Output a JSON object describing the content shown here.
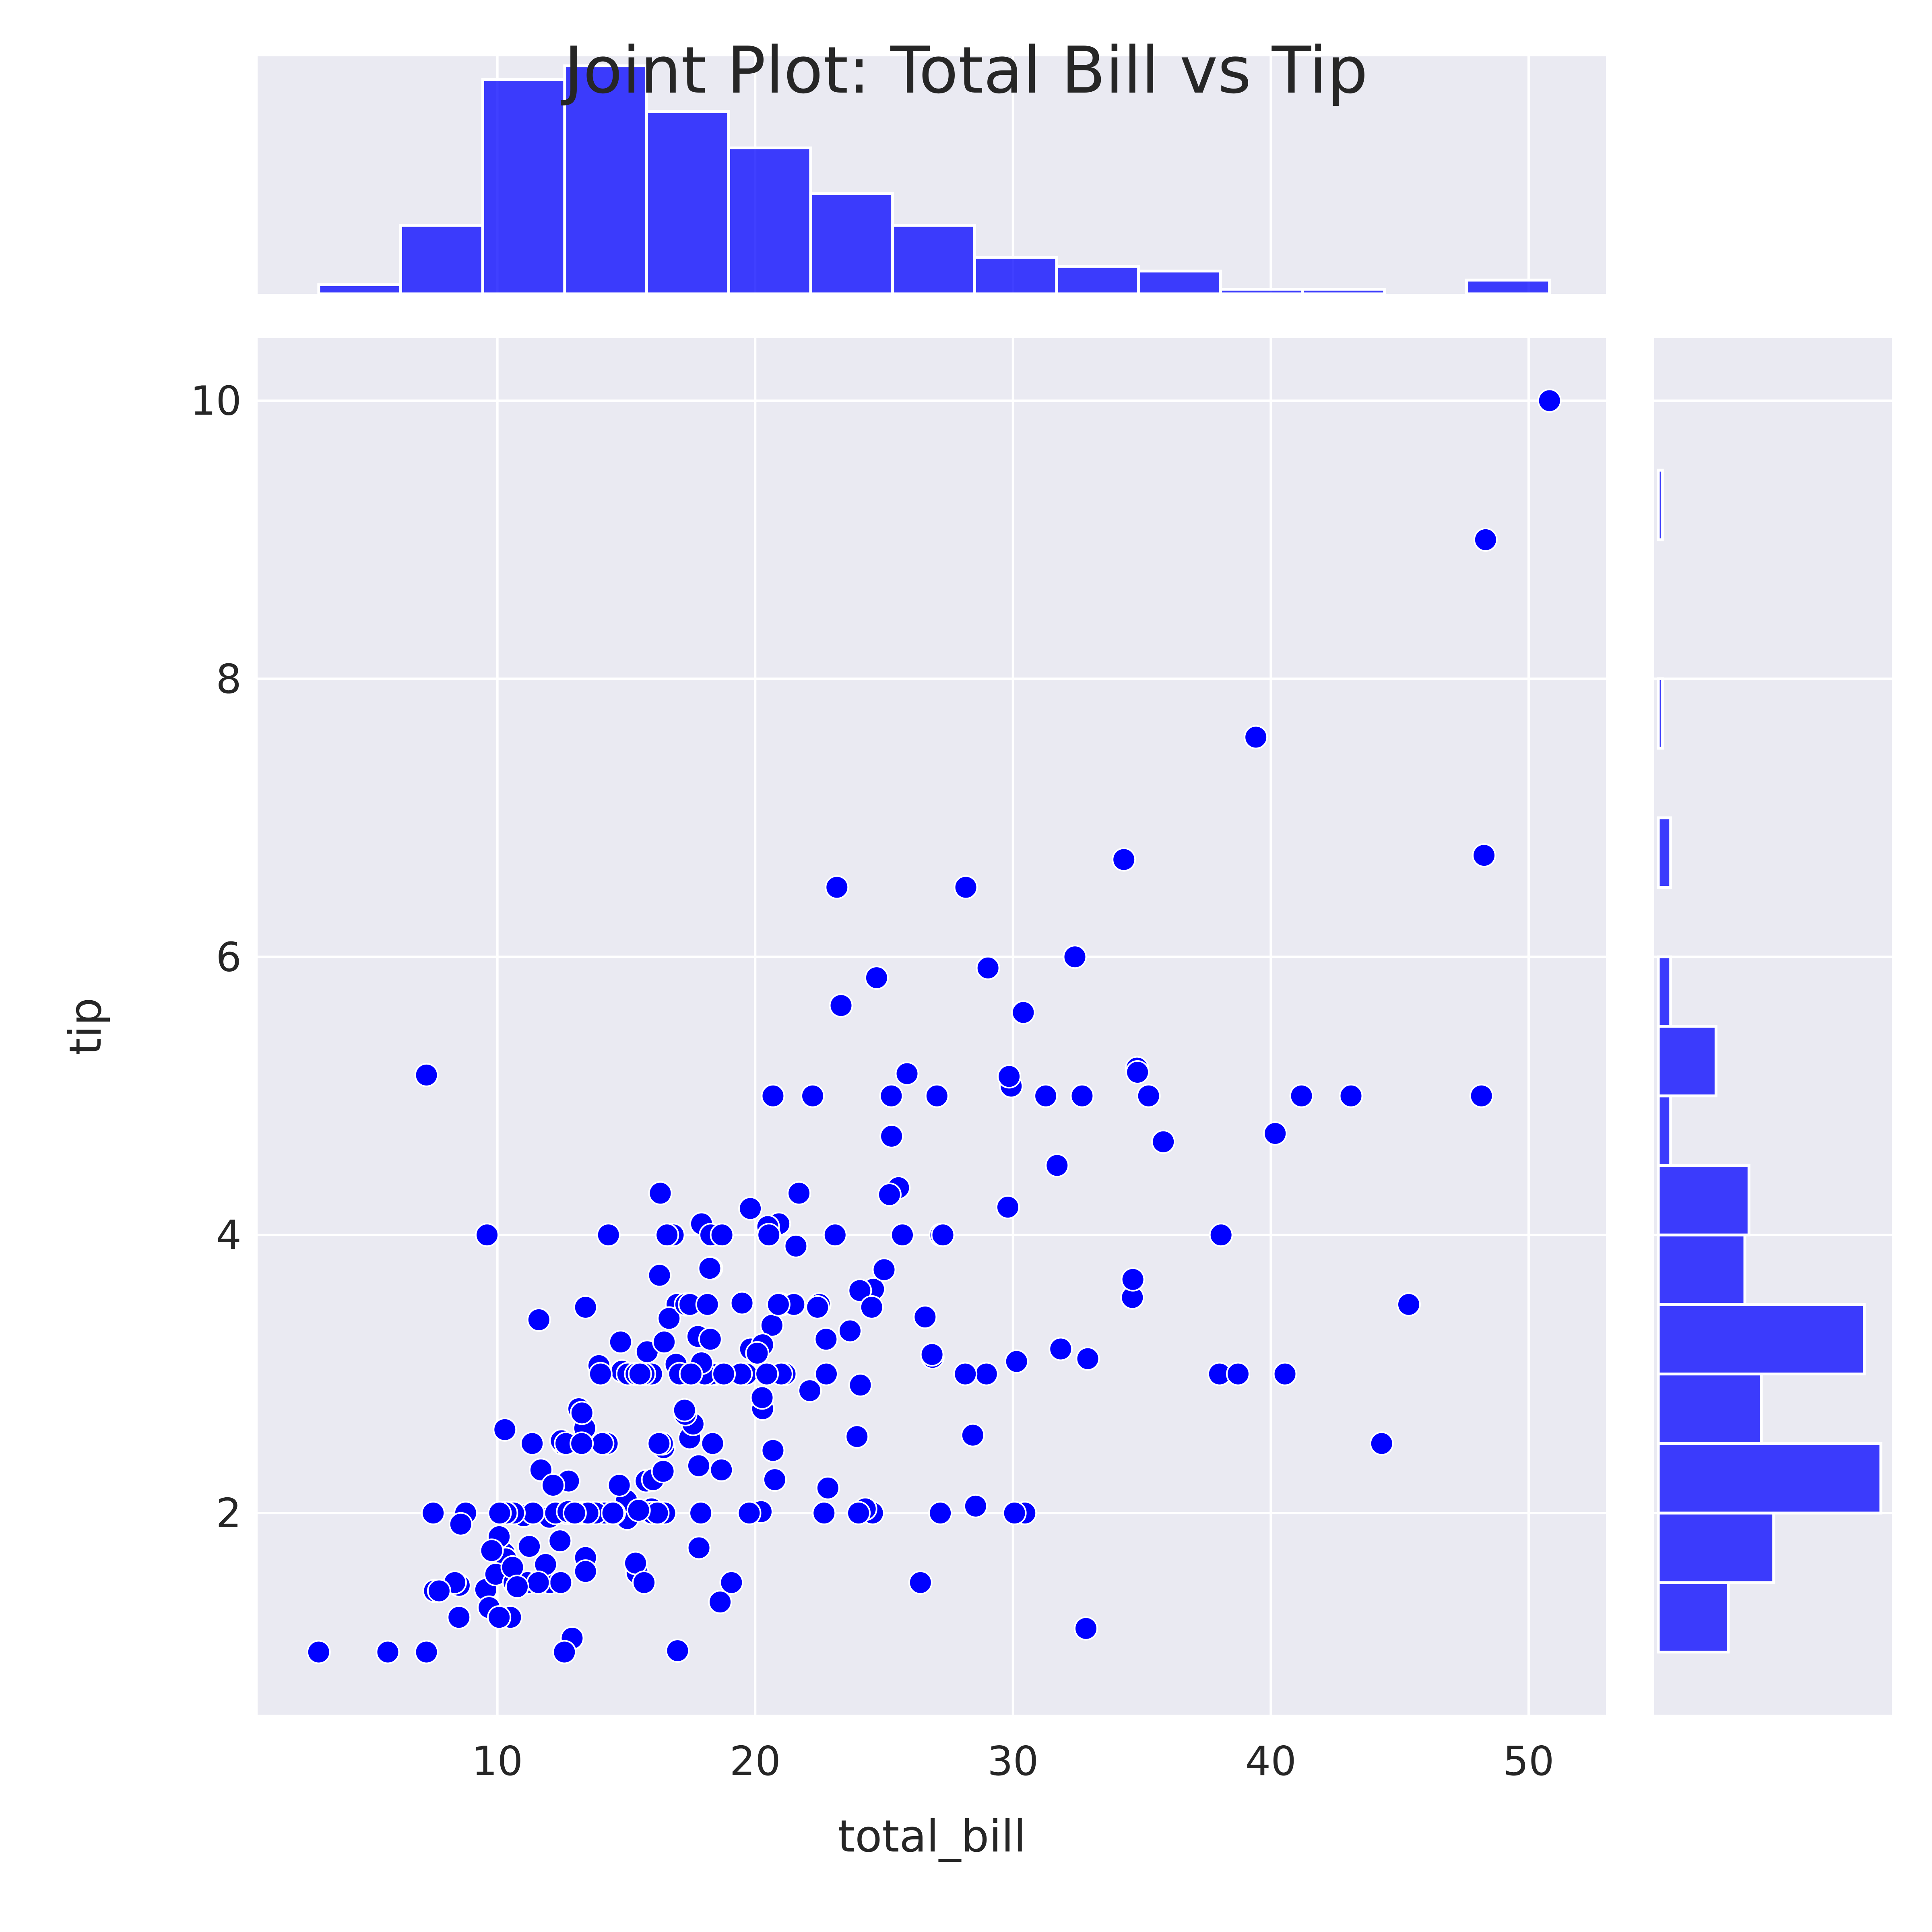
{
  "chart_data": {
    "type": "scatter",
    "title": "Joint Plot: Total Bill vs Tip",
    "xlabel": "total_bill",
    "ylabel": "tip",
    "xlim": [
      0.7,
      53.0
    ],
    "ylim": [
      0.55,
      10.45
    ],
    "xticks": [
      "10",
      "20",
      "30",
      "40",
      "50"
    ],
    "yticks": [
      "2",
      "4",
      "6",
      "8",
      "10"
    ],
    "grid": true,
    "color": "#0000ff",
    "points": [
      [
        16.99,
        1.01
      ],
      [
        10.34,
        1.66
      ],
      [
        21.01,
        3.5
      ],
      [
        23.68,
        3.31
      ],
      [
        24.59,
        3.61
      ],
      [
        25.29,
        4.71
      ],
      [
        8.77,
        2.0
      ],
      [
        26.88,
        3.12
      ],
      [
        15.04,
        1.96
      ],
      [
        14.78,
        3.23
      ],
      [
        10.27,
        1.71
      ],
      [
        35.26,
        5.0
      ],
      [
        15.42,
        1.57
      ],
      [
        18.43,
        3.0
      ],
      [
        14.83,
        3.02
      ],
      [
        21.58,
        3.92
      ],
      [
        10.33,
        1.67
      ],
      [
        16.29,
        3.71
      ],
      [
        16.97,
        3.5
      ],
      [
        20.65,
        3.35
      ],
      [
        17.92,
        4.08
      ],
      [
        20.29,
        2.75
      ],
      [
        15.77,
        2.23
      ],
      [
        39.42,
        7.58
      ],
      [
        19.82,
        3.18
      ],
      [
        17.81,
        2.34
      ],
      [
        13.37,
        2.0
      ],
      [
        12.69,
        2.0
      ],
      [
        21.7,
        4.3
      ],
      [
        19.65,
        3.0
      ],
      [
        9.55,
        1.45
      ],
      [
        18.35,
        2.5
      ],
      [
        15.06,
        3.0
      ],
      [
        20.69,
        2.45
      ],
      [
        17.78,
        3.27
      ],
      [
        24.06,
        3.6
      ],
      [
        16.31,
        2.0
      ],
      [
        16.93,
        3.07
      ],
      [
        18.69,
        2.31
      ],
      [
        31.27,
        5.0
      ],
      [
        16.04,
        2.24
      ],
      [
        17.46,
        2.54
      ],
      [
        13.94,
        3.06
      ],
      [
        9.68,
        1.32
      ],
      [
        30.4,
        5.6
      ],
      [
        18.29,
        3.0
      ],
      [
        22.23,
        5.0
      ],
      [
        32.4,
        6.0
      ],
      [
        28.55,
        2.05
      ],
      [
        18.04,
        3.0
      ],
      [
        12.54,
        2.5
      ],
      [
        10.29,
        2.6
      ],
      [
        34.81,
        5.2
      ],
      [
        9.94,
        1.56
      ],
      [
        25.56,
        4.34
      ],
      [
        19.49,
        3.51
      ],
      [
        38.01,
        3.0
      ],
      [
        26.41,
        1.5
      ],
      [
        11.24,
        1.76
      ],
      [
        48.27,
        6.73
      ],
      [
        20.29,
        3.21
      ],
      [
        13.81,
        2.0
      ],
      [
        11.02,
        1.98
      ],
      [
        18.29,
        3.76
      ],
      [
        17.59,
        2.64
      ],
      [
        20.08,
        3.15
      ],
      [
        16.45,
        2.47
      ],
      [
        3.07,
        1.0
      ],
      [
        20.23,
        2.01
      ],
      [
        15.01,
        2.09
      ],
      [
        12.02,
        1.97
      ],
      [
        17.07,
        3.0
      ],
      [
        26.86,
        3.14
      ],
      [
        25.28,
        5.0
      ],
      [
        14.73,
        2.2
      ],
      [
        10.51,
        1.25
      ],
      [
        17.92,
        3.08
      ],
      [
        27.2,
        4.0
      ],
      [
        22.76,
        3.0
      ],
      [
        17.29,
        2.71
      ],
      [
        19.44,
        3.0
      ],
      [
        16.66,
        3.4
      ],
      [
        10.07,
        1.83
      ],
      [
        32.68,
        5.0
      ],
      [
        15.98,
        2.03
      ],
      [
        34.83,
        5.17
      ],
      [
        13.03,
        2.0
      ],
      [
        18.28,
        4.0
      ],
      [
        24.71,
        5.85
      ],
      [
        21.16,
        3.0
      ],
      [
        28.97,
        3.0
      ],
      [
        22.49,
        3.5
      ],
      [
        5.75,
        1.0
      ],
      [
        16.32,
        4.3
      ],
      [
        22.75,
        3.25
      ],
      [
        40.17,
        4.73
      ],
      [
        27.28,
        4.0
      ],
      [
        12.03,
        1.5
      ],
      [
        21.01,
        3.0
      ],
      [
        12.46,
        1.5
      ],
      [
        11.35,
        2.5
      ],
      [
        15.38,
        3.0
      ],
      [
        44.3,
        2.5
      ],
      [
        22.42,
        3.48
      ],
      [
        20.92,
        4.08
      ],
      [
        15.36,
        1.64
      ],
      [
        20.49,
        4.06
      ],
      [
        25.21,
        4.29
      ],
      [
        18.24,
        3.76
      ],
      [
        14.31,
        4.0
      ],
      [
        14.0,
        3.0
      ],
      [
        7.25,
        1.0
      ],
      [
        38.07,
        4.0
      ],
      [
        23.95,
        2.55
      ],
      [
        25.71,
        4.0
      ],
      [
        17.31,
        3.5
      ],
      [
        29.93,
        5.07
      ],
      [
        10.65,
        1.5
      ],
      [
        12.43,
        1.8
      ],
      [
        24.08,
        2.92
      ],
      [
        11.69,
        2.31
      ],
      [
        13.42,
        1.68
      ],
      [
        14.26,
        2.5
      ],
      [
        15.95,
        2.0
      ],
      [
        12.48,
        2.52
      ],
      [
        29.8,
        4.2
      ],
      [
        8.52,
        1.48
      ],
      [
        14.52,
        2.0
      ],
      [
        11.38,
        2.0
      ],
      [
        22.82,
        2.18
      ],
      [
        19.08,
        1.5
      ],
      [
        20.27,
        2.83
      ],
      [
        11.17,
        1.5
      ],
      [
        12.26,
        2.0
      ],
      [
        18.26,
        3.25
      ],
      [
        8.51,
        1.25
      ],
      [
        10.33,
        2.0
      ],
      [
        14.15,
        2.0
      ],
      [
        16.0,
        2.0
      ],
      [
        13.16,
        2.75
      ],
      [
        17.47,
        3.5
      ],
      [
        34.3,
        6.7
      ],
      [
        41.19,
        5.0
      ],
      [
        27.05,
        5.0
      ],
      [
        16.43,
        2.3
      ],
      [
        8.35,
        1.5
      ],
      [
        18.64,
        1.36
      ],
      [
        11.87,
        1.63
      ],
      [
        9.78,
        1.73
      ],
      [
        7.51,
        2.0
      ],
      [
        14.07,
        2.5
      ],
      [
        13.13,
        2.0
      ],
      [
        17.26,
        2.74
      ],
      [
        24.55,
        2.0
      ],
      [
        19.77,
        2.0
      ],
      [
        29.85,
        5.14
      ],
      [
        48.17,
        5.0
      ],
      [
        25.0,
        3.75
      ],
      [
        13.39,
        2.61
      ],
      [
        16.49,
        2.0
      ],
      [
        21.5,
        3.5
      ],
      [
        12.66,
        2.5
      ],
      [
        16.21,
        2.0
      ],
      [
        13.81,
        2.0
      ],
      [
        17.51,
        3.0
      ],
      [
        24.52,
        3.48
      ],
      [
        20.76,
        2.24
      ],
      [
        31.71,
        4.5
      ],
      [
        10.59,
        1.61
      ],
      [
        10.63,
        2.0
      ],
      [
        50.81,
        10.0
      ],
      [
        15.81,
        3.16
      ],
      [
        7.25,
        5.15
      ],
      [
        31.85,
        3.18
      ],
      [
        16.82,
        4.0
      ],
      [
        32.9,
        3.11
      ],
      [
        17.89,
        2.0
      ],
      [
        14.48,
        2.0
      ],
      [
        9.6,
        4.0
      ],
      [
        34.63,
        3.55
      ],
      [
        34.65,
        3.68
      ],
      [
        23.33,
        5.65
      ],
      [
        45.35,
        3.5
      ],
      [
        23.17,
        6.5
      ],
      [
        40.55,
        3.0
      ],
      [
        20.69,
        5.0
      ],
      [
        20.9,
        3.5
      ],
      [
        30.46,
        2.0
      ],
      [
        18.15,
        3.5
      ],
      [
        23.1,
        4.0
      ],
      [
        15.69,
        1.5
      ],
      [
        19.81,
        4.19
      ],
      [
        28.44,
        2.56
      ],
      [
        15.48,
        2.02
      ],
      [
        16.58,
        4.0
      ],
      [
        7.56,
        1.44
      ],
      [
        10.34,
        2.0
      ],
      [
        43.11,
        5.0
      ],
      [
        13.0,
        2.0
      ],
      [
        13.51,
        2.0
      ],
      [
        18.71,
        4.0
      ],
      [
        12.74,
        2.01
      ],
      [
        13.0,
        2.0
      ],
      [
        16.4,
        2.5
      ],
      [
        20.53,
        4.0
      ],
      [
        16.47,
        3.23
      ],
      [
        26.59,
        3.41
      ],
      [
        38.73,
        3.0
      ],
      [
        24.27,
        2.03
      ],
      [
        12.76,
        2.23
      ],
      [
        30.06,
        2.0
      ],
      [
        25.89,
        5.16
      ],
      [
        48.33,
        9.0
      ],
      [
        13.27,
        2.5
      ],
      [
        28.17,
        6.5
      ],
      [
        12.9,
        1.1
      ],
      [
        28.15,
        3.0
      ],
      [
        11.59,
        1.5
      ],
      [
        7.74,
        1.44
      ],
      [
        30.14,
        3.09
      ],
      [
        12.16,
        2.2
      ],
      [
        13.42,
        3.48
      ],
      [
        8.58,
        1.92
      ],
      [
        15.98,
        3.0
      ],
      [
        13.42,
        1.58
      ],
      [
        16.27,
        2.5
      ],
      [
        10.09,
        2.0
      ],
      [
        20.45,
        3.0
      ],
      [
        13.28,
        2.72
      ],
      [
        22.12,
        2.88
      ],
      [
        24.01,
        2.0
      ],
      [
        15.69,
        3.0
      ],
      [
        11.61,
        3.39
      ],
      [
        10.77,
        1.47
      ],
      [
        15.53,
        3.0
      ],
      [
        10.07,
        1.25
      ],
      [
        12.6,
        1.0
      ],
      [
        32.83,
        1.17
      ],
      [
        35.83,
        4.67
      ],
      [
        29.03,
        5.92
      ],
      [
        27.18,
        2.0
      ],
      [
        22.67,
        2.0
      ],
      [
        17.82,
        1.75
      ],
      [
        18.78,
        3.0
      ]
    ],
    "x_histogram": {
      "bins": [
        [
          3.07,
          6.25
        ],
        [
          6.25,
          9.43
        ],
        [
          9.43,
          12.61
        ],
        [
          12.61,
          15.79
        ],
        [
          15.79,
          18.97
        ],
        [
          18.97,
          22.15
        ],
        [
          22.15,
          25.33
        ],
        [
          25.33,
          28.51
        ],
        [
          28.51,
          31.69
        ],
        [
          31.69,
          34.87
        ],
        [
          34.87,
          38.05
        ],
        [
          38.05,
          41.23
        ],
        [
          41.23,
          44.41
        ],
        [
          44.41,
          47.59
        ],
        [
          47.59,
          50.81
        ]
      ],
      "counts": [
        2,
        15,
        47,
        50,
        40,
        32,
        22,
        15,
        8,
        6,
        5,
        1,
        1,
        0,
        3
      ]
    },
    "y_histogram": {
      "bins": [
        [
          1.0,
          1.5
        ],
        [
          1.5,
          2.0
        ],
        [
          2.0,
          2.5
        ],
        [
          2.5,
          3.0
        ],
        [
          3.0,
          3.5
        ],
        [
          3.5,
          4.0
        ],
        [
          4.0,
          4.5
        ],
        [
          4.5,
          5.0
        ],
        [
          5.0,
          5.5
        ],
        [
          5.5,
          6.0
        ],
        [
          6.0,
          6.5
        ],
        [
          6.5,
          7.0
        ],
        [
          7.0,
          7.5
        ],
        [
          7.5,
          8.0
        ],
        [
          8.0,
          8.5
        ],
        [
          8.5,
          9.0
        ],
        [
          9.0,
          9.5
        ],
        [
          9.5,
          10.0
        ]
      ],
      "counts": [
        17,
        28,
        54,
        25,
        50,
        21,
        22,
        3,
        14,
        3,
        0,
        3,
        0,
        1,
        0,
        0,
        1,
        0
      ]
    }
  }
}
